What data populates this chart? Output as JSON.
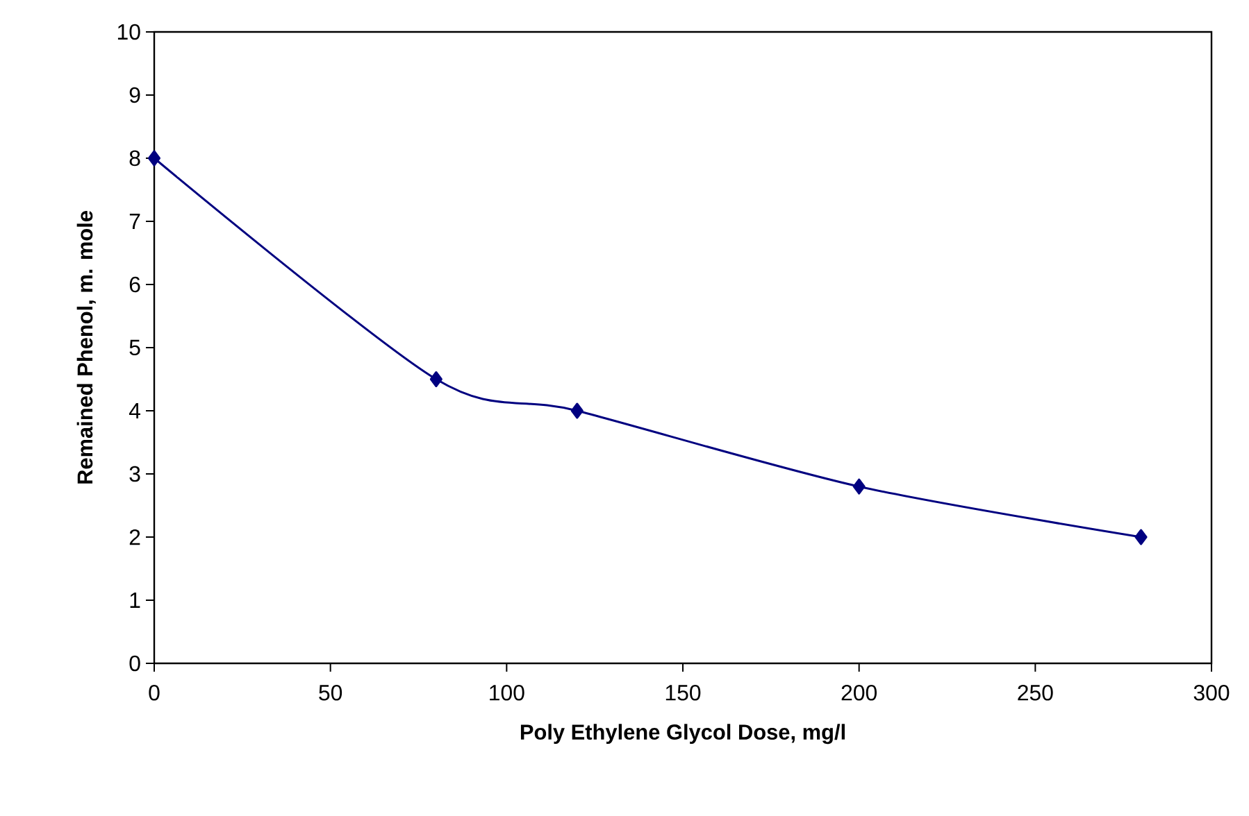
{
  "chart_data": {
    "type": "line",
    "xlabel": "Poly Ethylene Glycol Dose, mg/l",
    "ylabel": "Remained Phenol, m. mole",
    "x": [
      0,
      80,
      120,
      200,
      280
    ],
    "series": [
      {
        "color": "#000080",
        "values": [
          8,
          4.5,
          4,
          2.8,
          2
        ]
      }
    ],
    "xlim": [
      0,
      300
    ],
    "xticks": [
      0,
      50,
      100,
      150,
      200,
      250,
      300
    ],
    "ylim": [
      0,
      10
    ],
    "yticks": [
      0,
      1,
      2,
      3,
      4,
      5,
      6,
      7,
      8,
      9,
      10
    ],
    "marker": "diamond",
    "line_style": "solid"
  }
}
